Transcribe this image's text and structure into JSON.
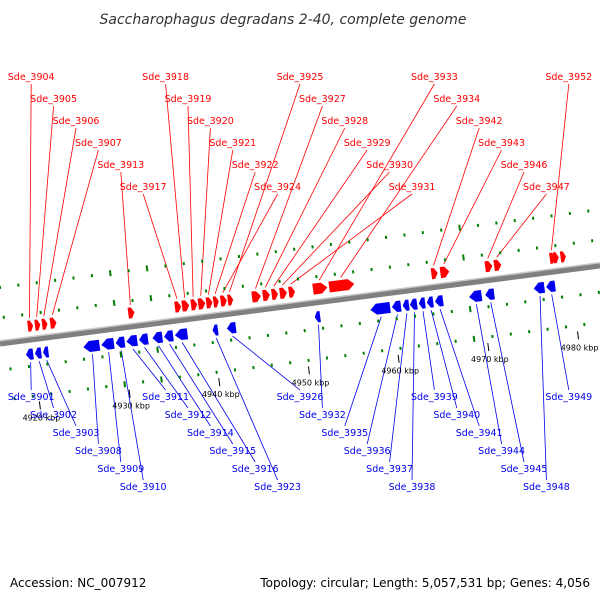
{
  "title": "Saccharophagus degradans 2-40, complete genome",
  "footer": {
    "accession": "Accession: NC_007912",
    "summary": "Topology: circular; Length: 5,057,531 bp; Genes: 4,056"
  },
  "colors": {
    "forward": "#ff0000",
    "reverse": "#0000ee",
    "backbone": "#808080",
    "tick": "#008000"
  },
  "scale": {
    "unit": "kbp",
    "ticks": [
      {
        "pos": 4920,
        "label": "4920 kbp"
      },
      {
        "pos": 4930,
        "label": "4930 kbp"
      },
      {
        "pos": 4940,
        "label": "4940 kbp"
      },
      {
        "pos": 4950,
        "label": "4950 kbp"
      },
      {
        "pos": 4960,
        "label": "4960 kbp"
      },
      {
        "pos": 4970,
        "label": "4970 kbp"
      },
      {
        "pos": 4980,
        "label": "4980 kbp"
      }
    ]
  },
  "genes": [
    {
      "id": "Sde_3901",
      "strand": "-",
      "start": 4919.2,
      "len": 0.8
    },
    {
      "id": "Sde_3902",
      "strand": "-",
      "start": 4920.2,
      "len": 0.7
    },
    {
      "id": "Sde_3903",
      "strand": "-",
      "start": 4921.1,
      "len": 0.6
    },
    {
      "id": "Sde_3904",
      "strand": "+",
      "start": 4919.8,
      "len": 0.6
    },
    {
      "id": "Sde_3905",
      "strand": "+",
      "start": 4920.6,
      "len": 0.6
    },
    {
      "id": "Sde_3906",
      "strand": "+",
      "start": 4921.4,
      "len": 0.6
    },
    {
      "id": "Sde_3907",
      "strand": "+",
      "start": 4922.3,
      "len": 0.7
    },
    {
      "id": "Sde_3908",
      "strand": "-",
      "start": 4925.6,
      "len": 1.8
    },
    {
      "id": "Sde_3909",
      "strand": "-",
      "start": 4927.6,
      "len": 1.4
    },
    {
      "id": "Sde_3910",
      "strand": "-",
      "start": 4929.2,
      "len": 1.0
    },
    {
      "id": "Sde_3911",
      "strand": "-",
      "start": 4930.4,
      "len": 1.2
    },
    {
      "id": "Sde_3912",
      "strand": "-",
      "start": 4931.8,
      "len": 1.0
    },
    {
      "id": "Sde_3913",
      "strand": "+",
      "start": 4931.0,
      "len": 0.7
    },
    {
      "id": "Sde_3914",
      "strand": "-",
      "start": 4933.3,
      "len": 1.1
    },
    {
      "id": "Sde_3915",
      "strand": "-",
      "start": 4934.6,
      "len": 1.0
    },
    {
      "id": "Sde_3916",
      "strand": "-",
      "start": 4935.8,
      "len": 1.4
    },
    {
      "id": "Sde_3917",
      "strand": "+",
      "start": 4936.2,
      "len": 0.7
    },
    {
      "id": "Sde_3918",
      "strand": "+",
      "start": 4937.0,
      "len": 0.8
    },
    {
      "id": "Sde_3919",
      "strand": "+",
      "start": 4938.0,
      "len": 0.7
    },
    {
      "id": "Sde_3920",
      "strand": "+",
      "start": 4938.8,
      "len": 0.8
    },
    {
      "id": "Sde_3921",
      "strand": "+",
      "start": 4939.7,
      "len": 0.7
    },
    {
      "id": "Sde_3922",
      "strand": "+",
      "start": 4940.5,
      "len": 0.6
    },
    {
      "id": "Sde_3923",
      "strand": "-",
      "start": 4940.0,
      "len": 0.6
    },
    {
      "id": "Sde_3924",
      "strand": "+",
      "start": 4941.3,
      "len": 0.7
    },
    {
      "id": "Sde_3925",
      "strand": "+",
      "start": 4942.1,
      "len": 0.6
    },
    {
      "id": "Sde_3926",
      "strand": "-",
      "start": 4941.6,
      "len": 1.0
    },
    {
      "id": "Sde_3927",
      "strand": "+",
      "start": 4944.8,
      "len": 1.0
    },
    {
      "id": "Sde_3928",
      "strand": "+",
      "start": 4946.0,
      "len": 0.8
    },
    {
      "id": "Sde_3929",
      "strand": "+",
      "start": 4947.0,
      "len": 0.7
    },
    {
      "id": "Sde_3930",
      "strand": "+",
      "start": 4947.9,
      "len": 0.8
    },
    {
      "id": "Sde_3931",
      "strand": "+",
      "start": 4948.9,
      "len": 0.7
    },
    {
      "id": "Sde_3932",
      "strand": "-",
      "start": 4951.4,
      "len": 0.6
    },
    {
      "id": "Sde_3933",
      "strand": "+",
      "start": 4951.6,
      "len": 1.6
    },
    {
      "id": "Sde_3934",
      "strand": "+",
      "start": 4953.4,
      "len": 2.8
    },
    {
      "id": "Sde_3935",
      "strand": "-",
      "start": 4957.6,
      "len": 2.2
    },
    {
      "id": "Sde_3936",
      "strand": "-",
      "start": 4960.0,
      "len": 1.0
    },
    {
      "id": "Sde_3937",
      "strand": "-",
      "start": 4961.2,
      "len": 0.7
    },
    {
      "id": "Sde_3938",
      "strand": "-",
      "start": 4962.0,
      "len": 0.8
    },
    {
      "id": "Sde_3939",
      "strand": "-",
      "start": 4963.0,
      "len": 0.7
    },
    {
      "id": "Sde_3940",
      "strand": "-",
      "start": 4963.9,
      "len": 0.7
    },
    {
      "id": "Sde_3941",
      "strand": "-",
      "start": 4964.8,
      "len": 0.9
    },
    {
      "id": "Sde_3942",
      "strand": "+",
      "start": 4964.8,
      "len": 0.7
    },
    {
      "id": "Sde_3943",
      "strand": "+",
      "start": 4965.8,
      "len": 1.0
    },
    {
      "id": "Sde_3944",
      "strand": "-",
      "start": 4968.6,
      "len": 1.4
    },
    {
      "id": "Sde_3945",
      "strand": "-",
      "start": 4970.4,
      "len": 1.0
    },
    {
      "id": "Sde_3946",
      "strand": "+",
      "start": 4970.8,
      "len": 0.8
    },
    {
      "id": "Sde_3947",
      "strand": "+",
      "start": 4971.8,
      "len": 0.8
    },
    {
      "id": "Sde_3948",
      "strand": "-",
      "start": 4975.8,
      "len": 1.2
    },
    {
      "id": "Sde_3949",
      "strand": "-",
      "start": 4977.2,
      "len": 1.0
    },
    {
      "id": "Sde_3950",
      "strand": "+",
      "start": 4978.4,
      "len": 0.6
    },
    {
      "id": "Sde_3951",
      "strand": "+",
      "start": 4979.2,
      "len": 0.6
    },
    {
      "id": "Sde_3952",
      "strand": "+",
      "start": 4978.0,
      "len": 0.6
    }
  ],
  "labels": {
    "forward": [
      "Sde_3904",
      "Sde_3905",
      "Sde_3906",
      "Sde_3907",
      "Sde_3913",
      "Sde_3917",
      "Sde_3918",
      "Sde_3919",
      "Sde_3920",
      "Sde_3921",
      "Sde_3922",
      "Sde_3924",
      "Sde_3925",
      "Sde_3927",
      "Sde_3928",
      "Sde_3929",
      "Sde_3930",
      "Sde_3931",
      "Sde_3933",
      "Sde_3934",
      "Sde_3942",
      "Sde_3943",
      "Sde_3946",
      "Sde_3947",
      "Sde_3952"
    ],
    "reverse": [
      "Sde_3901",
      "Sde_3902",
      "Sde_3903",
      "Sde_3908",
      "Sde_3909",
      "Sde_3910",
      "Sde_3911",
      "Sde_3912",
      "Sde_3914",
      "Sde_3915",
      "Sde_3916",
      "Sde_3923",
      "Sde_3926",
      "Sde_3932",
      "Sde_3935",
      "Sde_3936",
      "Sde_3937",
      "Sde_3938",
      "Sde_3939",
      "Sde_3940",
      "Sde_3941",
      "Sde_3944",
      "Sde_3945",
      "Sde_3948",
      "Sde_3949"
    ]
  }
}
